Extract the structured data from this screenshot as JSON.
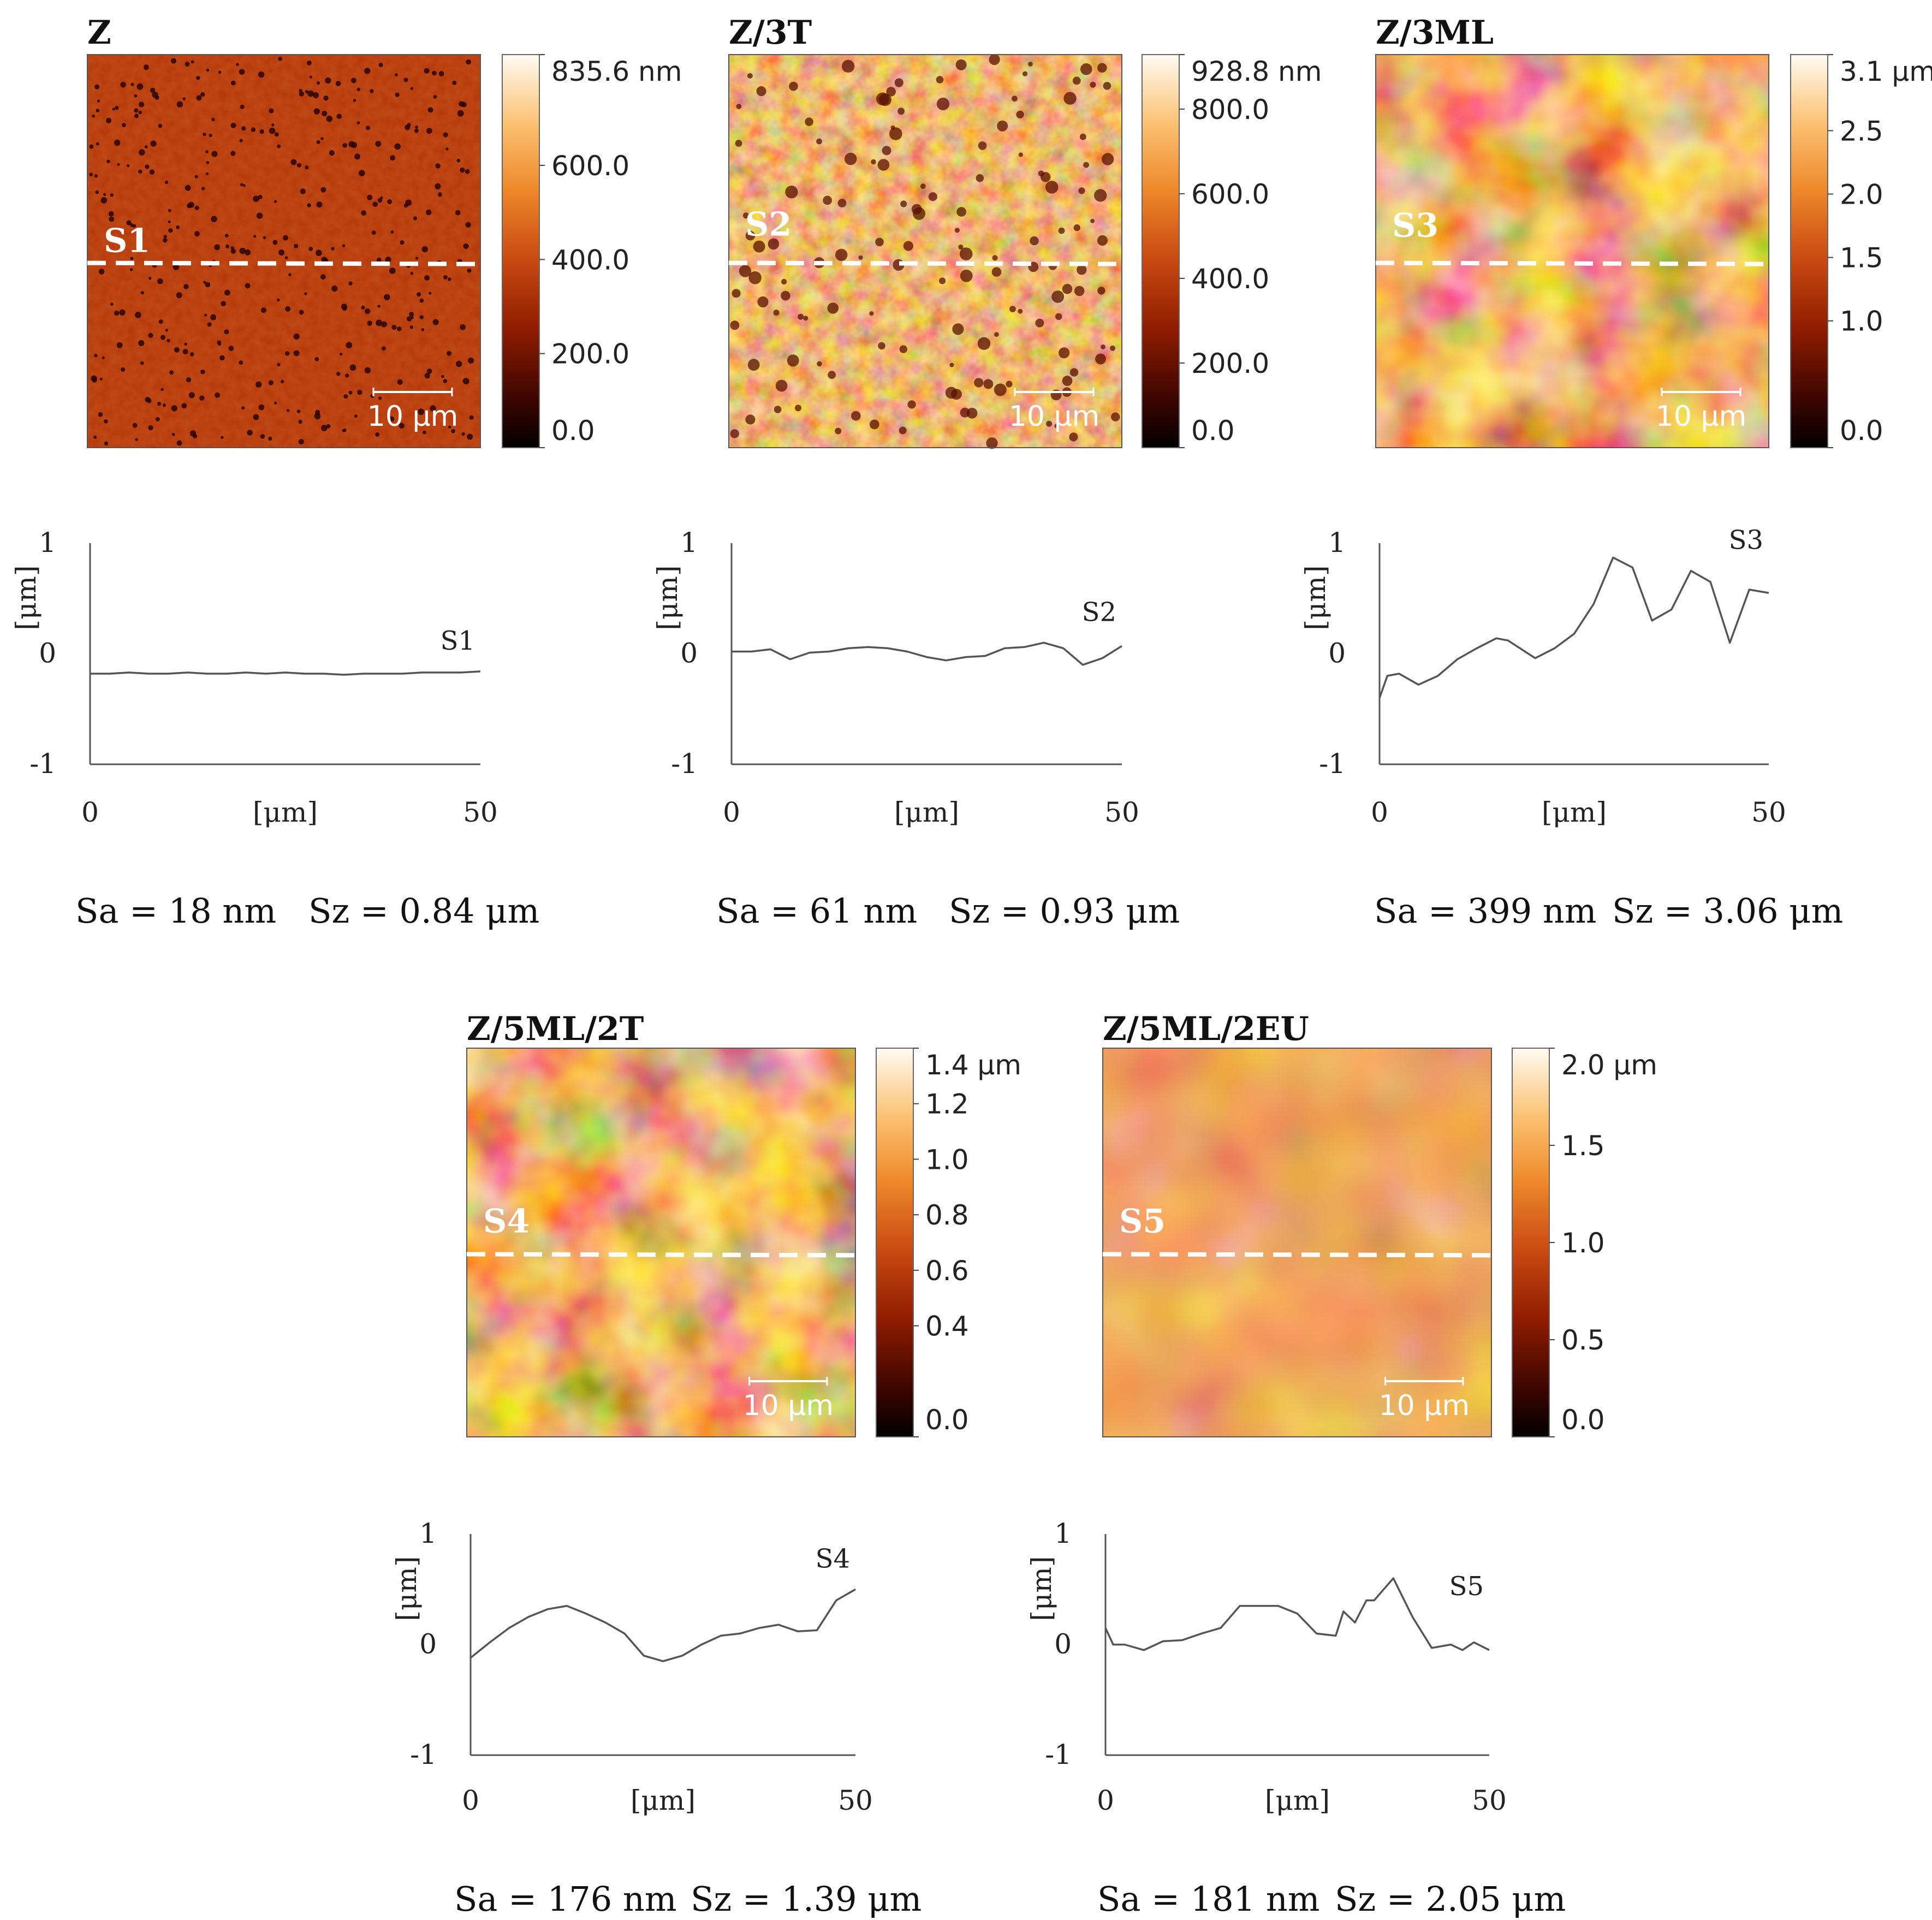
{
  "chart_data": [
    {
      "type": "line",
      "title": "Z",
      "map_label": "S1",
      "scale_bar": "10 μm",
      "colorbar_ticks": [
        "835.6 nm",
        "600.0",
        "400.0",
        "200.0",
        "0.0"
      ],
      "colorbar_values": [
        835.6,
        600.0,
        400.0,
        200.0,
        0.0
      ],
      "colorbar_max": 835.6,
      "map_style": "fine",
      "xlabel": "[μm]",
      "ylabel": "[μm]",
      "xlim": [
        0,
        50
      ],
      "ylim": [
        -1,
        1
      ],
      "x_ticks": [
        "0",
        "50"
      ],
      "y_ticks": [
        "1",
        "0",
        "-1"
      ],
      "series": [
        {
          "name": "S1",
          "x": [
            0,
            2.5,
            5,
            7.5,
            10,
            12.5,
            15,
            17.5,
            20,
            22.5,
            25,
            27.5,
            30,
            32.5,
            35,
            37.5,
            40,
            42.5,
            45,
            47.5,
            50
          ],
          "y": [
            -0.18,
            -0.18,
            -0.17,
            -0.18,
            -0.18,
            -0.17,
            -0.18,
            -0.18,
            -0.17,
            -0.18,
            -0.17,
            -0.18,
            -0.18,
            -0.19,
            -0.18,
            -0.18,
            -0.18,
            -0.17,
            -0.17,
            -0.17,
            -0.16
          ]
        }
      ],
      "stats": {
        "sa": "Sa = 18 nm",
        "sz": "Sz = 0.84 μm"
      }
    },
    {
      "type": "line",
      "title": "Z/3T",
      "map_label": "S2",
      "scale_bar": "10 μm",
      "colorbar_ticks": [
        "928.8 nm",
        "800.0",
        "600.0",
        "400.0",
        "200.0",
        "0.0"
      ],
      "colorbar_values": [
        928.8,
        800.0,
        600.0,
        400.0,
        200.0,
        0.0
      ],
      "colorbar_max": 928.8,
      "map_style": "medium",
      "xlabel": "[μm]",
      "ylabel": "[μm]",
      "xlim": [
        0,
        50
      ],
      "ylim": [
        -1,
        1
      ],
      "x_ticks": [
        "0",
        "50"
      ],
      "y_ticks": [
        "1",
        "0",
        "-1"
      ],
      "series": [
        {
          "name": "S2",
          "x": [
            0,
            2.5,
            5,
            7.5,
            10,
            12.5,
            15,
            17.5,
            20,
            22.5,
            25,
            27.5,
            30,
            32.5,
            35,
            37.5,
            40,
            42.5,
            45,
            47.5,
            50
          ],
          "y": [
            0.02,
            0.02,
            0.04,
            -0.05,
            0.01,
            0.02,
            0.05,
            0.06,
            0.05,
            0.02,
            -0.03,
            -0.06,
            -0.03,
            -0.02,
            0.05,
            0.06,
            0.1,
            0.05,
            -0.1,
            -0.04,
            0.07
          ]
        }
      ],
      "stats": {
        "sa": "Sa = 61 nm",
        "sz": "Sz = 0.93 μm"
      }
    },
    {
      "type": "line",
      "title": "Z/3ML",
      "map_label": "S3",
      "scale_bar": "10 μm",
      "colorbar_ticks": [
        "3.1 μm",
        "2.5",
        "2.0",
        "1.5",
        "1.0",
        "0.0"
      ],
      "colorbar_values": [
        3.1,
        2.5,
        2.0,
        1.5,
        1.0,
        0.0
      ],
      "colorbar_max": 3.1,
      "map_style": "coarse",
      "xlabel": "[μm]",
      "ylabel": "[μm]",
      "xlim": [
        0,
        50
      ],
      "ylim": [
        -1,
        1
      ],
      "x_ticks": [
        "0",
        "50"
      ],
      "y_ticks": [
        "1",
        "0",
        "-1"
      ],
      "series": [
        {
          "name": "S3",
          "x": [
            0,
            1,
            2.5,
            5,
            7.5,
            10,
            12.5,
            15,
            16.5,
            20,
            22.5,
            25,
            27.5,
            30,
            32.5,
            35,
            37.5,
            40,
            42.5,
            45,
            47.5,
            50
          ],
          "y": [
            -0.4,
            -0.2,
            -0.18,
            -0.28,
            -0.2,
            -0.05,
            0.05,
            0.14,
            0.12,
            -0.04,
            0.05,
            0.18,
            0.45,
            0.87,
            0.78,
            0.3,
            0.4,
            0.75,
            0.65,
            0.1,
            0.58,
            0.55
          ]
        }
      ],
      "stats": {
        "sa": "Sa = 399 nm",
        "sz": "Sz = 3.06 μm"
      }
    },
    {
      "type": "line",
      "title": "Z/5ML/2T",
      "map_label": "S4",
      "scale_bar": "10 μm",
      "colorbar_ticks": [
        "1.4 μm",
        "1.2",
        "1.0",
        "0.8",
        "0.6",
        "0.4",
        "0.0"
      ],
      "colorbar_values": [
        1.4,
        1.2,
        1.0,
        0.8,
        0.6,
        0.4,
        0.0
      ],
      "colorbar_max": 1.4,
      "map_style": "coarse",
      "xlabel": "[μm]",
      "ylabel": "[μm]",
      "xlim": [
        0,
        50
      ],
      "ylim": [
        -1,
        1
      ],
      "x_ticks": [
        "0",
        "50"
      ],
      "y_ticks": [
        "1",
        "0",
        "-1"
      ],
      "series": [
        {
          "name": "S4",
          "x": [
            0,
            2.5,
            5,
            7.5,
            10,
            12.5,
            15,
            17.5,
            20,
            22.5,
            25,
            27.5,
            30,
            32.5,
            35,
            37.5,
            40,
            42.5,
            45,
            47.5,
            50
          ],
          "y": [
            -0.12,
            0.02,
            0.15,
            0.25,
            0.32,
            0.35,
            0.28,
            0.2,
            0.1,
            -0.1,
            -0.15,
            -0.1,
            0.0,
            0.08,
            0.1,
            0.15,
            0.18,
            0.12,
            0.13,
            0.4,
            0.5
          ]
        }
      ],
      "stats": {
        "sa": "Sa = 176 nm",
        "sz": "Sz = 1.39 μm"
      }
    },
    {
      "type": "line",
      "title": "Z/5ML/2EU",
      "map_label": "S5",
      "scale_bar": "10 μm",
      "colorbar_ticks": [
        "2.0 μm",
        "1.5",
        "1.0",
        "0.5",
        "0.0"
      ],
      "colorbar_values": [
        2.0,
        1.5,
        1.0,
        0.5,
        0.0
      ],
      "colorbar_max": 2.0,
      "map_style": "smooth",
      "xlabel": "[μm]",
      "ylabel": "[μm]",
      "xlim": [
        0,
        50
      ],
      "ylim": [
        -1,
        1
      ],
      "x_ticks": [
        "0",
        "50"
      ],
      "y_ticks": [
        "1",
        "0",
        "-1"
      ],
      "series": [
        {
          "name": "S5",
          "x": [
            0,
            1,
            2.5,
            5,
            7.5,
            10,
            12.5,
            15,
            17.5,
            20,
            22.5,
            25,
            27.5,
            30,
            31,
            32.5,
            34,
            35,
            37.5,
            40,
            42.5,
            45,
            46.5,
            48,
            50
          ],
          "y": [
            0.15,
            0.0,
            0.0,
            -0.05,
            0.03,
            0.04,
            0.1,
            0.15,
            0.35,
            0.35,
            0.35,
            0.28,
            0.1,
            0.08,
            0.3,
            0.2,
            0.4,
            0.4,
            0.6,
            0.25,
            -0.03,
            0.0,
            -0.05,
            0.02,
            -0.05
          ]
        }
      ],
      "stats": {
        "sa": "Sa = 181 nm",
        "sz": "Sz = 2.05 μm"
      }
    }
  ]
}
